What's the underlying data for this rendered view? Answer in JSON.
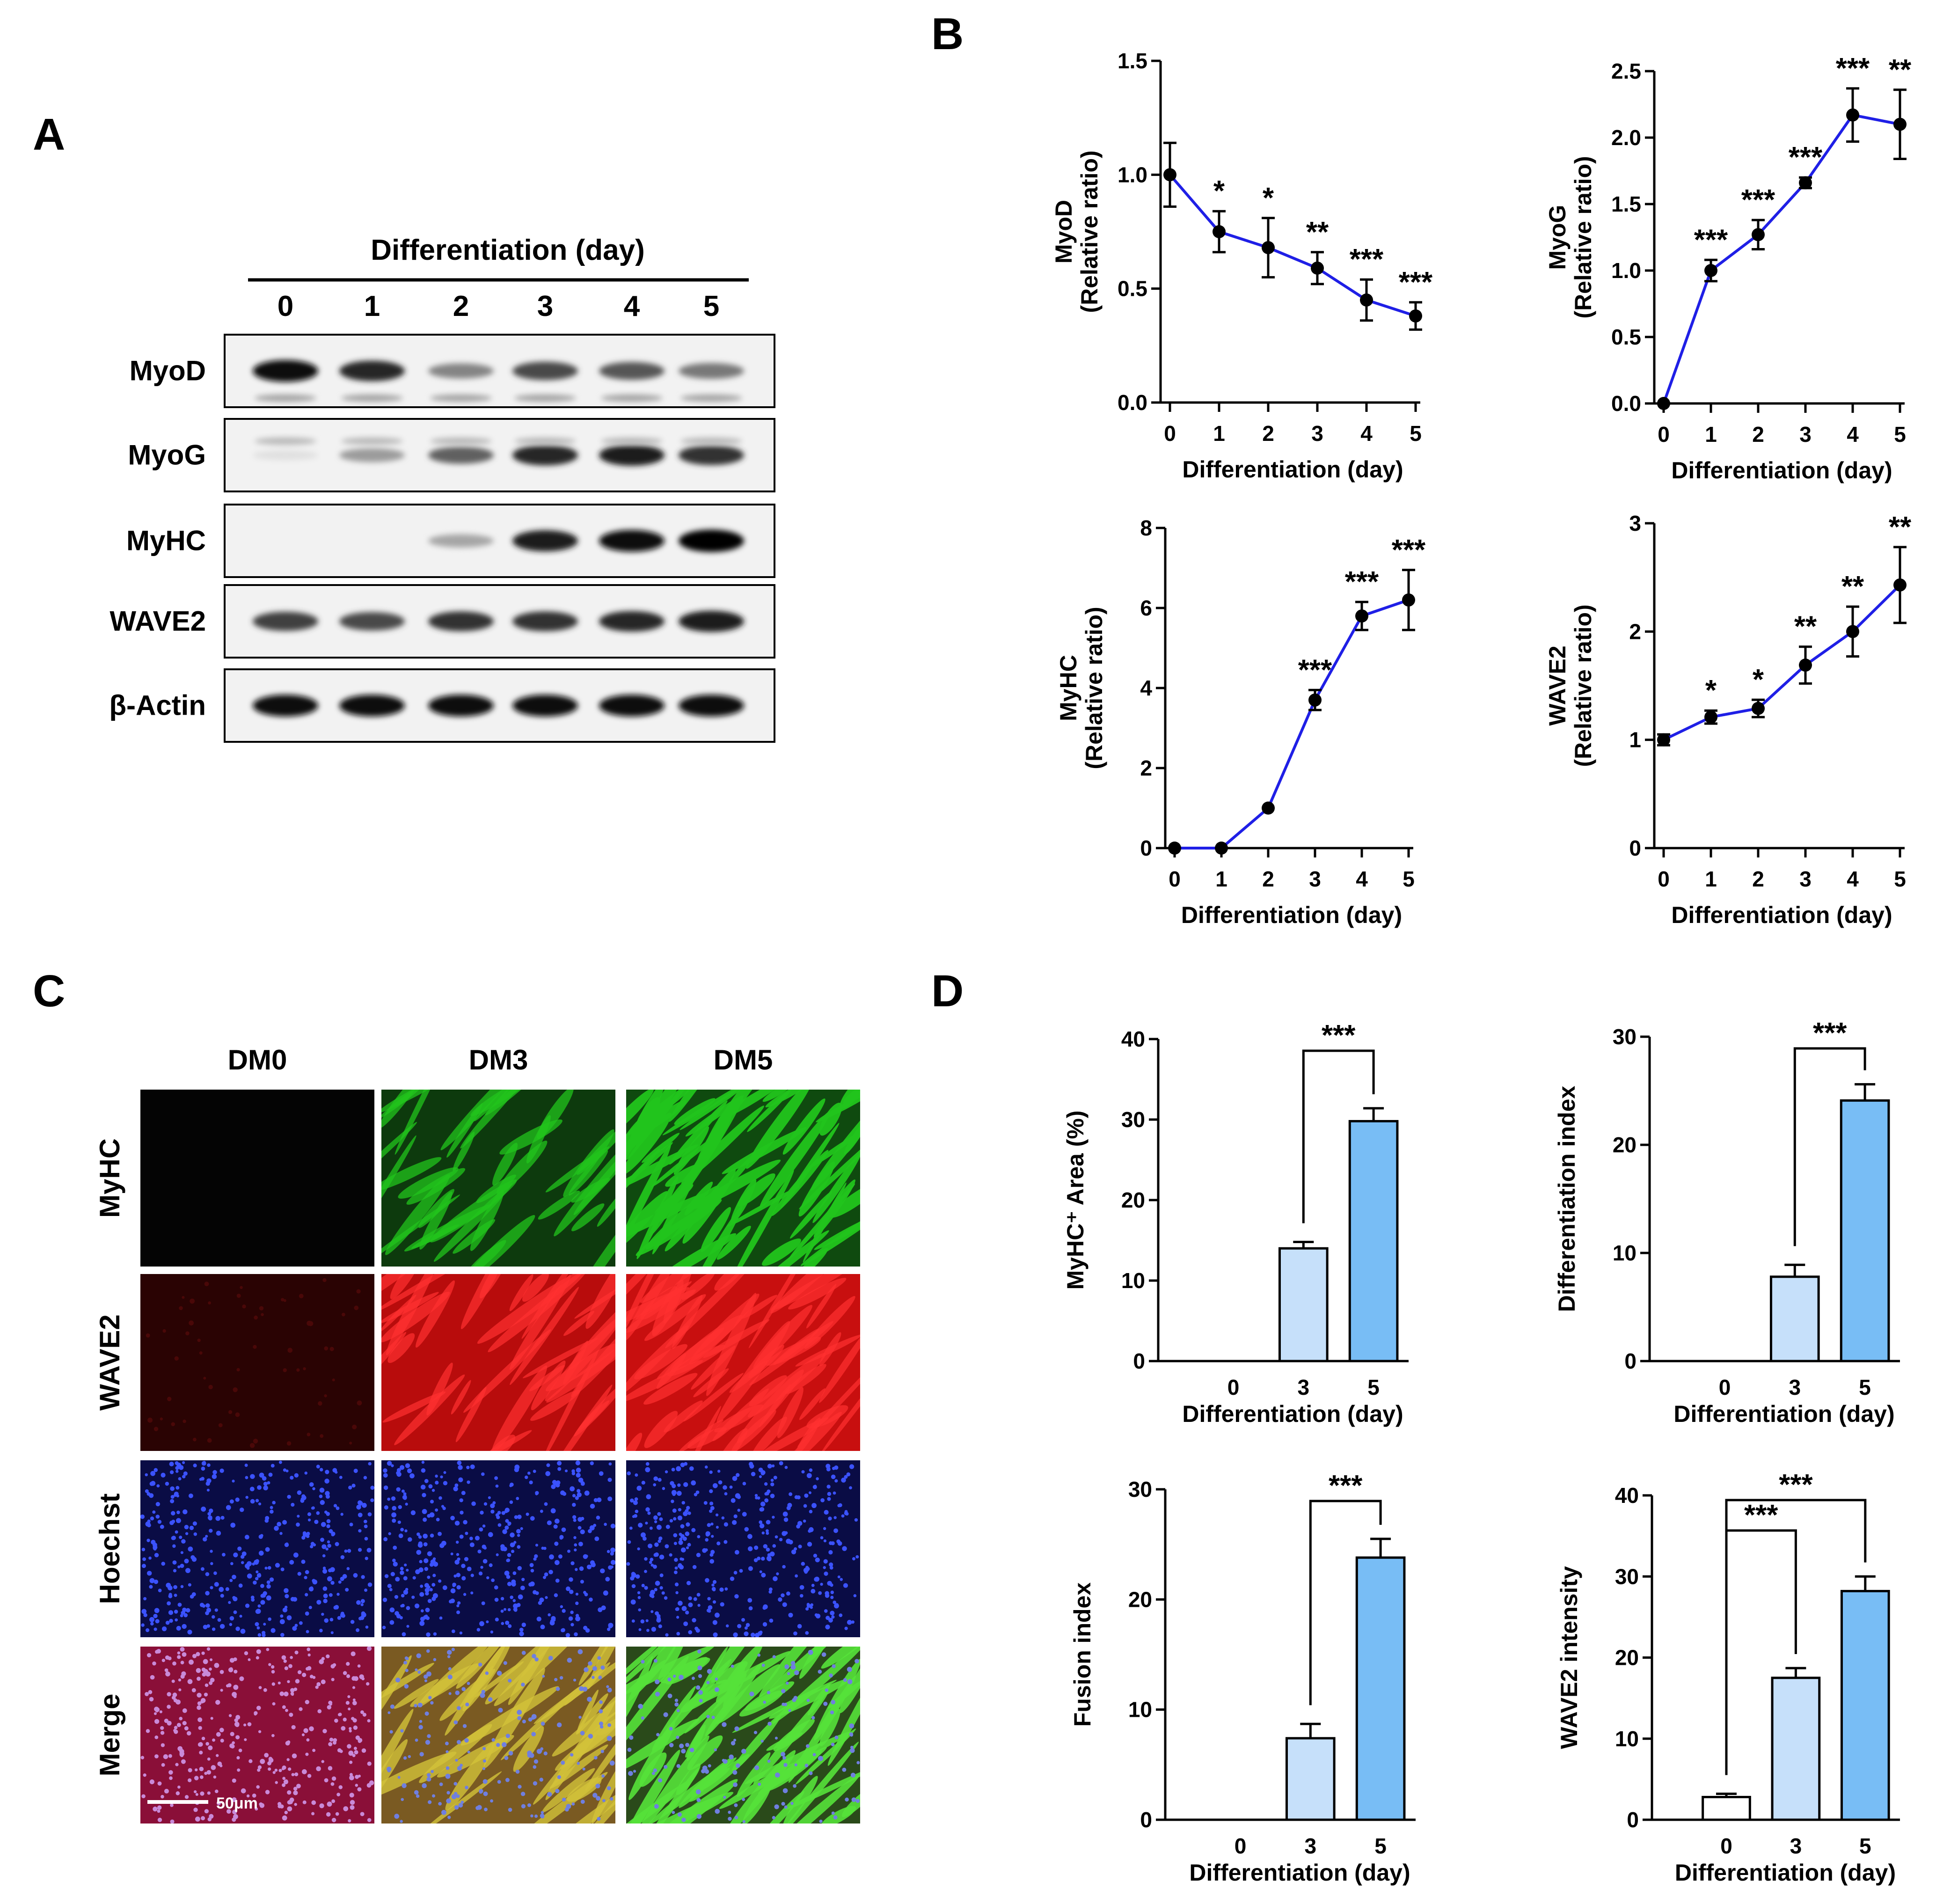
{
  "panels": {
    "a": "A",
    "b": "B",
    "c": "C",
    "d": "D"
  },
  "western_blot": {
    "header": "Differentiation (day)",
    "lanes": [
      "0",
      "1",
      "2",
      "3",
      "4",
      "5"
    ],
    "rows": [
      {
        "label": "MyoD",
        "intensity": [
          0.95,
          0.85,
          0.45,
          0.7,
          0.65,
          0.5
        ],
        "secondary": 0.35
      },
      {
        "label": "MyoG",
        "intensity": [
          0.05,
          0.35,
          0.6,
          0.85,
          0.9,
          0.8
        ],
        "secondary": 0.25
      },
      {
        "label": "MyHC",
        "intensity": [
          0.0,
          0.0,
          0.3,
          0.9,
          0.95,
          1.0
        ],
        "secondary": 0.0
      },
      {
        "label": "WAVE2",
        "intensity": [
          0.75,
          0.7,
          0.8,
          0.8,
          0.85,
          0.9
        ],
        "secondary": 0.0
      },
      {
        "label": "β-Actin",
        "intensity": [
          0.95,
          0.95,
          0.95,
          0.95,
          0.95,
          0.95
        ],
        "secondary": 0.0
      }
    ]
  },
  "images": {
    "columns": [
      "DM0",
      "DM3",
      "DM5"
    ],
    "rows": [
      "MyHC",
      "WAVE2",
      "Hoechst",
      "Merge"
    ],
    "scale_bar": "50μm"
  },
  "chart_data": [
    {
      "type": "line",
      "panel": "B",
      "x": [
        0,
        1,
        2,
        3,
        4,
        5
      ],
      "values": [
        1.0,
        0.75,
        0.68,
        0.59,
        0.45,
        0.38
      ],
      "errors": [
        0.14,
        0.09,
        0.13,
        0.07,
        0.09,
        0.06
      ],
      "sig": [
        "",
        "*",
        "*",
        "**",
        "***",
        "***"
      ],
      "ylabel": "MyoD",
      "ylabel2": "(Relative ratio)",
      "xlabel": "Differentiation (day)",
      "ylim": [
        0,
        1.5
      ],
      "yticks": [
        "0.0",
        "0.5",
        "1.0",
        "1.5"
      ]
    },
    {
      "type": "line",
      "panel": "B",
      "x": [
        0,
        1,
        2,
        3,
        4,
        5
      ],
      "values": [
        0.0,
        1.0,
        1.27,
        1.66,
        2.17,
        2.1
      ],
      "errors": [
        0.0,
        0.08,
        0.11,
        0.04,
        0.2,
        0.26
      ],
      "sig": [
        "",
        "***",
        "***",
        "***",
        "***",
        "**"
      ],
      "ylabel": "MyoG",
      "ylabel2": "(Relative ratio)",
      "xlabel": "Differentiation (day)",
      "ylim": [
        0,
        2.5
      ],
      "yticks": [
        "0.0",
        "0.5",
        "1.0",
        "1.5",
        "2.0",
        "2.5"
      ]
    },
    {
      "type": "line",
      "panel": "B",
      "x": [
        0,
        1,
        2,
        3,
        4,
        5
      ],
      "values": [
        0.0,
        0.0,
        1.0,
        3.7,
        5.8,
        6.2
      ],
      "errors": [
        0.0,
        0.0,
        0.0,
        0.25,
        0.35,
        0.75
      ],
      "sig": [
        "",
        "",
        "",
        "***",
        "***",
        "***"
      ],
      "ylabel": "MyHC",
      "ylabel2": "(Relative ratio)",
      "xlabel": "Differentiation (day)",
      "ylim": [
        0,
        8
      ],
      "yticks": [
        "0",
        "2",
        "4",
        "6",
        "8"
      ]
    },
    {
      "type": "line",
      "panel": "B",
      "x": [
        0,
        1,
        2,
        3,
        4,
        5
      ],
      "values": [
        1.0,
        1.21,
        1.29,
        1.69,
        2.0,
        2.43
      ],
      "errors": [
        0.05,
        0.06,
        0.08,
        0.17,
        0.23,
        0.35
      ],
      "sig": [
        "",
        "*",
        "*",
        "**",
        "**",
        "**"
      ],
      "ylabel": "WAVE2",
      "ylabel2": "(Relative ratio)",
      "xlabel": "Differentiation (day)",
      "ylim": [
        0,
        3
      ],
      "yticks": [
        "0",
        "1",
        "2",
        "3"
      ]
    },
    {
      "type": "bar",
      "panel": "D",
      "categories": [
        "0",
        "3",
        "5"
      ],
      "values": [
        0,
        14,
        29.8
      ],
      "errors": [
        0,
        0.8,
        1.6
      ],
      "ylabel": "MyHC⁺ Area (%)",
      "xlabel": "Differentiation (day)",
      "ylim": [
        0,
        40
      ],
      "yticks": [
        "0",
        "10",
        "20",
        "30",
        "40"
      ],
      "brackets": [
        {
          "from": 1,
          "to": 2,
          "label": "***"
        }
      ]
    },
    {
      "type": "bar",
      "panel": "D",
      "categories": [
        "0",
        "3",
        "5"
      ],
      "values": [
        0,
        7.8,
        24.1
      ],
      "errors": [
        0,
        1.1,
        1.5
      ],
      "ylabel": "Differentiation index",
      "xlabel": "Differentiation (day)",
      "ylim": [
        0,
        30
      ],
      "yticks": [
        "0",
        "10",
        "20",
        "30"
      ],
      "brackets": [
        {
          "from": 1,
          "to": 2,
          "label": "***"
        }
      ]
    },
    {
      "type": "bar",
      "panel": "D",
      "categories": [
        "0",
        "3",
        "5"
      ],
      "values": [
        0,
        7.4,
        23.8
      ],
      "errors": [
        0,
        1.3,
        1.7
      ],
      "ylabel": "Fusion index",
      "xlabel": "Differentiation (day)",
      "ylim": [
        0,
        30
      ],
      "yticks": [
        "0",
        "10",
        "20",
        "30"
      ],
      "brackets": [
        {
          "from": 1,
          "to": 2,
          "label": "***"
        }
      ]
    },
    {
      "type": "bar",
      "panel": "D",
      "categories": [
        "0",
        "3",
        "5"
      ],
      "values": [
        2.8,
        17.5,
        28.2
      ],
      "errors": [
        0.4,
        1.2,
        1.8
      ],
      "ylabel": "WAVE2 intensity",
      "xlabel": "Differentiation (day)",
      "ylim": [
        0,
        40
      ],
      "yticks": [
        "0",
        "10",
        "20",
        "30",
        "40"
      ],
      "brackets": [
        {
          "from": 0,
          "to": 1,
          "label": "***"
        },
        {
          "from": 0,
          "to": 2,
          "label": "***"
        }
      ]
    }
  ],
  "colors": {
    "line": "#1f1fe6",
    "marker": "#000000",
    "bar_fills": [
      "#ffffff",
      "#c6e0fa",
      "#78bdf5"
    ],
    "wb_bg": "#f2f2f2",
    "myhc": "#22c41c",
    "wave2": "#e81414",
    "hoechst": "#1a2bd0",
    "dark": "#050505"
  }
}
